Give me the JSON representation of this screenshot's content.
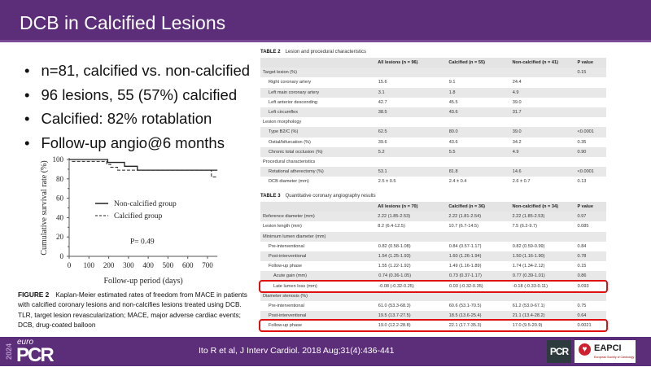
{
  "header": {
    "title": "DCB in Calcified Lesions"
  },
  "bullets": [
    "n=81, calcified vs. non-calcified",
    "96 lesions, 55 (57%) calcified",
    "Calcified: 82% rotablation",
    "Follow-up angio@6 months"
  ],
  "figure": {
    "caption_label": "FIGURE 2",
    "caption_text": "Kaplan-Meier estimated rates of freedom from MACE in patients with calcified coronary lesions and non-calcifies lesions treated using DCB. TLR, target lesion revascularization; MACE, major adverse cardiac events; DCB, drug-coated balloon"
  },
  "chart_data": {
    "type": "line",
    "title": "",
    "xlabel": "Follow-up period (days)",
    "ylabel": "Cumulative survival rate (%)",
    "xlim": [
      0,
      750
    ],
    "ylim": [
      0,
      100
    ],
    "xticks": [
      "0",
      "100",
      "200",
      "300",
      "400",
      "500",
      "600",
      "700"
    ],
    "yticks": [
      "0",
      "20",
      "40",
      "60",
      "80",
      "100"
    ],
    "annotation": "P= 0.49",
    "legend_position": "center",
    "series": [
      {
        "name": "Calcified group",
        "style": "dashed",
        "x": [
          0,
          15,
          170,
          190,
          210,
          245,
          720,
          750
        ],
        "y": [
          100,
          98,
          98,
          95,
          92,
          89,
          82,
          82
        ]
      },
      {
        "name": "Non-calcified group",
        "style": "solid",
        "x": [
          0,
          195,
          280,
          345,
          750
        ],
        "y": [
          100,
          97,
          93,
          89,
          89
        ]
      }
    ]
  },
  "table2": {
    "label": "TABLE 2",
    "title": "Lesion and procedural characteristics",
    "headers": [
      "",
      "All lesions (n = 96)",
      "Calcified (n = 55)",
      "Non-calcified (n = 41)",
      "P value"
    ],
    "rows": [
      [
        "Target lesion (%)",
        "",
        "",
        "",
        "0.15"
      ],
      [
        "Right coronary artery",
        "15.6",
        "9.1",
        "24.4",
        ""
      ],
      [
        "Left main coronary artery",
        "3.1",
        "1.8",
        "4.9",
        ""
      ],
      [
        "Left anterior descending",
        "42.7",
        "45.5",
        "39.0",
        ""
      ],
      [
        "Left circumflex",
        "38.5",
        "43.6",
        "31.7",
        ""
      ],
      [
        "Lesion morphology",
        "",
        "",
        "",
        ""
      ],
      [
        "Type B2/C (%)",
        "62.5",
        "80.0",
        "39.0",
        "<0.0001"
      ],
      [
        "Ostial/bifurcation (%)",
        "39.6",
        "43.6",
        "34.2",
        "0.35"
      ],
      [
        "Chronic total occlusion (%)",
        "5.2",
        "5.5",
        "4.9",
        "0.90"
      ],
      [
        "Procedural characteristics",
        "",
        "",
        "",
        ""
      ],
      [
        "Rotational atherectomy (%)",
        "53.1",
        "81.8",
        "14.6",
        "<0.0001"
      ],
      [
        "DCB diameter (mm)",
        "2.5 ± 0.5",
        "2.4 ± 0.4",
        "2.6 ± 0.7",
        "0.13"
      ]
    ]
  },
  "table3": {
    "label": "TABLE 3",
    "title": "Quantitative coronary angiography results",
    "headers": [
      "",
      "All lesions (n = 70)",
      "Calcified (n = 36)",
      "Non-calcified (n = 34)",
      "P value"
    ],
    "rows": [
      [
        "Reference diameter (mm)",
        "2.22 (1.85-2.53)",
        "2.22 (1.81-2.54)",
        "2.22 (1.85-2.53)",
        "0.97"
      ],
      [
        "Lesion length (mm)",
        "8.2 (6.4-12.5)",
        "10.7 (6.7-14.5)",
        "7.5 (6.2-9.7)",
        "0.085"
      ],
      [
        "Minimum lumen diameter (mm)",
        "",
        "",
        "",
        ""
      ],
      [
        "Pre-interventional",
        "0.82 (0.58-1.08)",
        "0.84 (0.57-1.17)",
        "0.82 (0.59-0.99)",
        "0.84"
      ],
      [
        "Post-interventional",
        "1.54 (1.25-1.93)",
        "1.60 (1.26-1.94)",
        "1.50 (1.16-1.90)",
        "0.78"
      ],
      [
        "Follow-up phase",
        "1.55 (1.22-1.92)",
        "1.49 (1.16-1.89)",
        "1.74 (1.34-2.12)",
        "0.15"
      ],
      [
        "Acute gain (mm)",
        "0.74 (0.36-1.05)",
        "0.73 (0.37-1.17)",
        "0.77 (0.39-1.01)",
        "0.86"
      ],
      [
        "Late lumen loss (mm)",
        "-0.08 (-0.32-0.25)",
        "0.03 (-0.32-0.35)",
        "-0.18 (-0.33-0.11)",
        "0.093"
      ],
      [
        "Diameter stenosis (%)",
        "",
        "",
        "",
        ""
      ],
      [
        "Pre-interventional",
        "61.0 (53.3-68.3)",
        "60.6 (53.1-70.5)",
        "61.2 (53.0-67.1)",
        "0.75"
      ],
      [
        "Post-interventional",
        "19.5 (13.7-27.5)",
        "18.5 (13.6-25.4)",
        "21.1 (13.4-28.2)",
        "0.64"
      ],
      [
        "Follow-up phase",
        "19.0 (12.2-28.8)",
        "22.1 (17.7-35.3)",
        "17.0 (9.5-20.9)",
        "0.0021"
      ]
    ]
  },
  "footer": {
    "citation": "Ito R et al, J Interv Cardiol. 2018 Aug;31(4):436-441",
    "logo_year": "2024",
    "logo_euro": "euro",
    "logo_pcr": "PCR",
    "badge_pcr": "PCR",
    "badge_eapci": "EAPCI",
    "badge_eapci_sub": "European Society of Cardiology"
  },
  "colors": {
    "brand": "#5c2d78",
    "highlight": "#e01010"
  }
}
